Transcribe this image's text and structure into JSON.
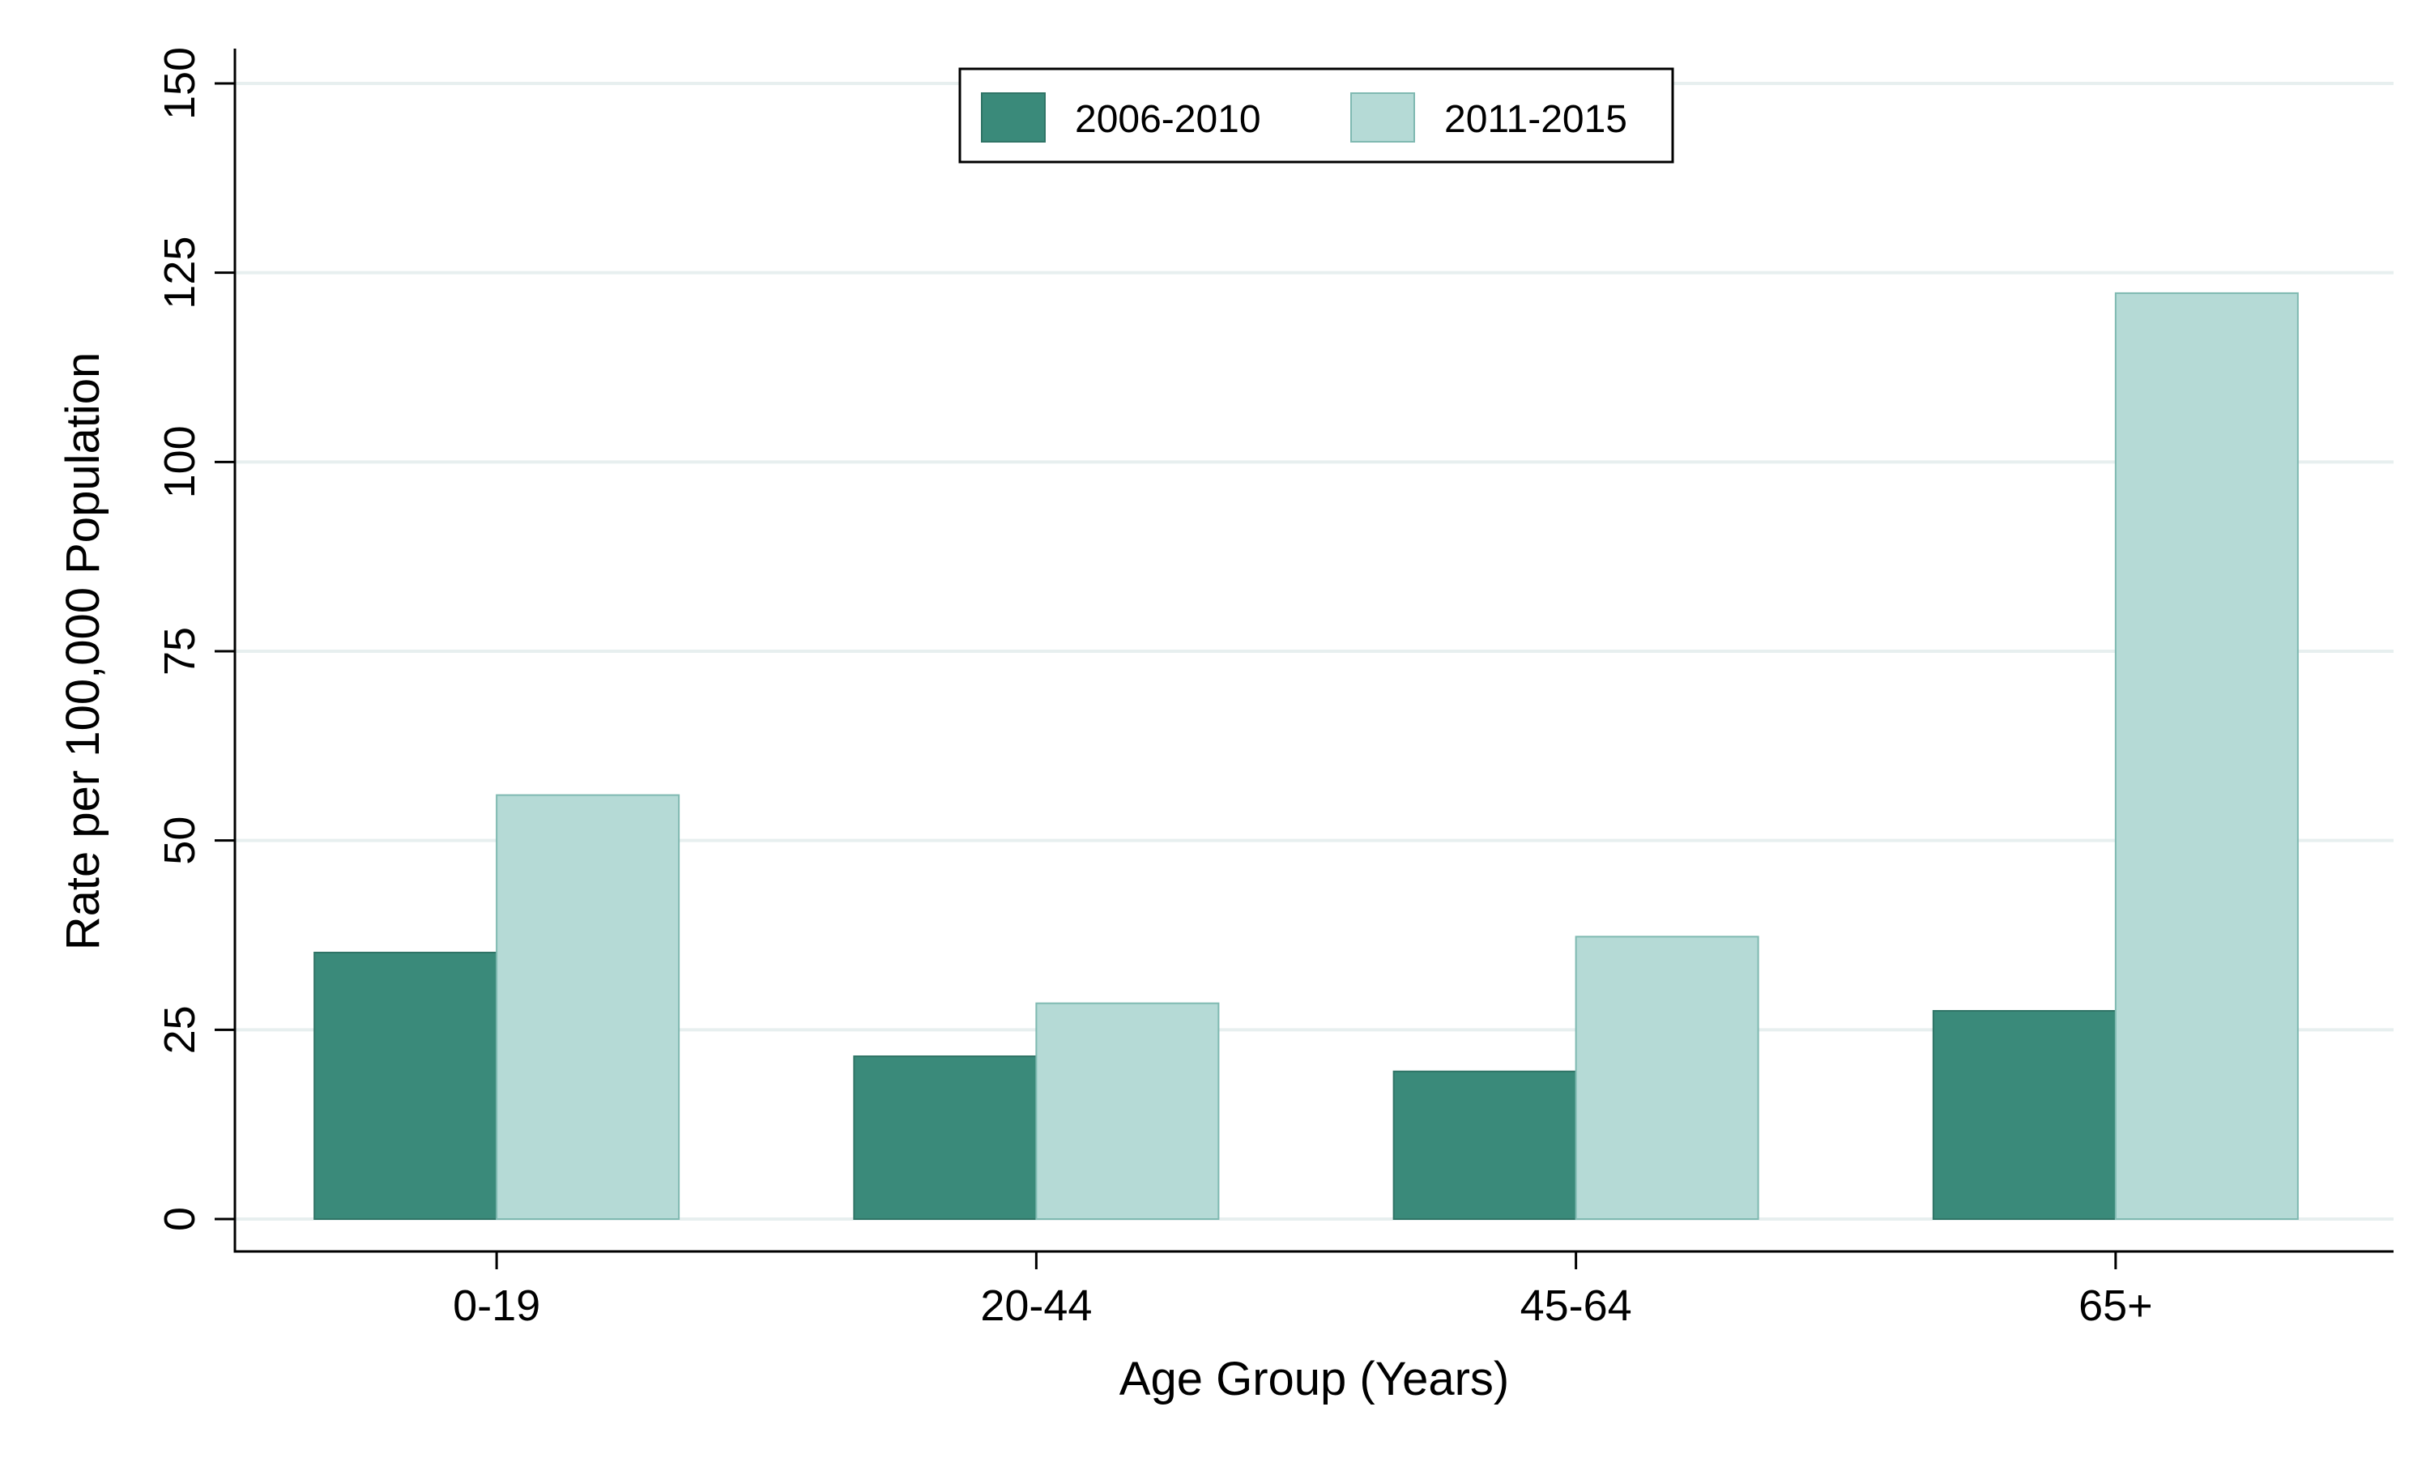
{
  "chart_data": {
    "type": "bar",
    "title": "",
    "xlabel": "Age Group (Years)",
    "ylabel": "Rate per 100,000 Population",
    "categories": [
      "0-19",
      "20-44",
      "45-64",
      "65+"
    ],
    "series": [
      {
        "name": "2006-2010",
        "values": [
          35.2,
          21.5,
          19.5,
          27.5
        ],
        "color": "#3a8a7a"
      },
      {
        "name": "2011-2015",
        "values": [
          56.0,
          28.5,
          37.3,
          122.3
        ],
        "color": "#b5dad6"
      }
    ],
    "ylim": [
      0,
      150
    ],
    "yticks": [
      "0",
      "25",
      "50",
      "75",
      "100",
      "125",
      "150"
    ],
    "grid": true,
    "grid_color": "#e7efef",
    "legend_position": "top-center"
  }
}
